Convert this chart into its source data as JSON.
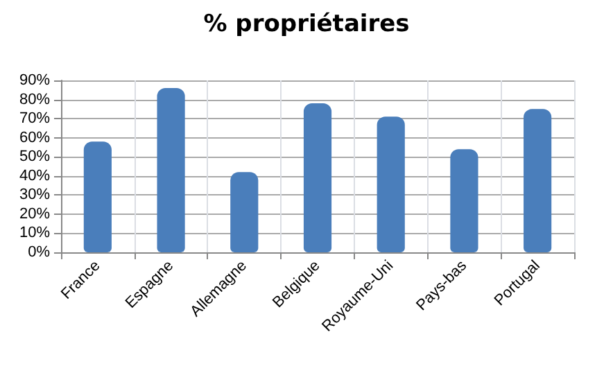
{
  "chart_data": {
    "type": "bar",
    "title": "% propriétaires",
    "categories": [
      "France",
      "Espagne",
      "Allemagne",
      "Belgique",
      "Royaume-Uni",
      "Pays-bas",
      "Portugal"
    ],
    "values": [
      58,
      86,
      42,
      78,
      71,
      54,
      75
    ],
    "color": "#4a7ebb",
    "ylim": [
      0,
      90
    ],
    "yticks": [
      {
        "value": 0,
        "label": "0%"
      },
      {
        "value": 10,
        "label": "10%"
      },
      {
        "value": 20,
        "label": "20%"
      },
      {
        "value": 30,
        "label": "30%"
      },
      {
        "value": 40,
        "label": "40%"
      },
      {
        "value": 50,
        "label": "50%"
      },
      {
        "value": 60,
        "label": "60%"
      },
      {
        "value": 70,
        "label": "70%"
      },
      {
        "value": 80,
        "label": "80%"
      },
      {
        "value": 90,
        "label": "90%"
      }
    ],
    "grid": true
  }
}
